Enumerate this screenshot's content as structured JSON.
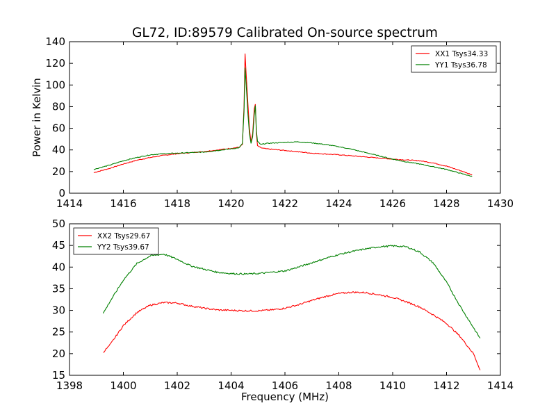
{
  "title": "GL72, ID:89579 Calibrated On-source spectrum",
  "colors": {
    "xx": "#ff0000",
    "yy": "#008000"
  },
  "chart_data": [
    {
      "type": "line",
      "ylabel": "Power in Kelvin",
      "xlabel": "",
      "xlim": [
        1414,
        1430
      ],
      "ylim": [
        0,
        140
      ],
      "xticks": [
        1414,
        1416,
        1418,
        1420,
        1422,
        1424,
        1426,
        1428,
        1430
      ],
      "yticks": [
        0,
        20,
        40,
        60,
        80,
        100,
        120,
        140
      ],
      "legend": "top-right",
      "grid": false,
      "series": [
        {
          "name": "XX1 Tsys34.33",
          "color": "#ff0000",
          "points": [
            [
              1414.9,
              19
            ],
            [
              1415.5,
              23
            ],
            [
              1416,
              27
            ],
            [
              1416.5,
              30.5
            ],
            [
              1417,
              33
            ],
            [
              1417.5,
              35
            ],
            [
              1418,
              36.5
            ],
            [
              1418.5,
              37.5
            ],
            [
              1419,
              38.5
            ],
            [
              1419.5,
              40
            ],
            [
              1420,
              41.5
            ],
            [
              1420.3,
              42.5
            ],
            [
              1420.42,
              45
            ],
            [
              1420.48,
              80
            ],
            [
              1420.52,
              129
            ],
            [
              1420.56,
              110
            ],
            [
              1420.62,
              85
            ],
            [
              1420.68,
              60
            ],
            [
              1420.74,
              47
            ],
            [
              1420.8,
              55
            ],
            [
              1420.86,
              78
            ],
            [
              1420.9,
              82
            ],
            [
              1420.94,
              55
            ],
            [
              1420.98,
              44
            ],
            [
              1421.1,
              42
            ],
            [
              1421.3,
              41
            ],
            [
              1422,
              39.5
            ],
            [
              1423,
              37
            ],
            [
              1424,
              35.5
            ],
            [
              1425,
              33.5
            ],
            [
              1426,
              31.5
            ],
            [
              1427,
              30
            ],
            [
              1427.5,
              28
            ],
            [
              1428,
              25
            ],
            [
              1428.5,
              21
            ],
            [
              1428.95,
              17
            ]
          ]
        },
        {
          "name": "YY1 Tsys36.78",
          "color": "#008000",
          "points": [
            [
              1414.9,
              22
            ],
            [
              1415.5,
              26
            ],
            [
              1416,
              30
            ],
            [
              1416.5,
              33
            ],
            [
              1417,
              35.5
            ],
            [
              1417.5,
              36.5
            ],
            [
              1418,
              37
            ],
            [
              1418.5,
              37.5
            ],
            [
              1419,
              38
            ],
            [
              1419.5,
              39.5
            ],
            [
              1420,
              41
            ],
            [
              1420.3,
              42
            ],
            [
              1420.42,
              46
            ],
            [
              1420.48,
              75
            ],
            [
              1420.52,
              116
            ],
            [
              1420.56,
              100
            ],
            [
              1420.62,
              75
            ],
            [
              1420.68,
              55
            ],
            [
              1420.74,
              46
            ],
            [
              1420.8,
              52
            ],
            [
              1420.86,
              72
            ],
            [
              1420.9,
              81
            ],
            [
              1420.94,
              58
            ],
            [
              1420.98,
              48
            ],
            [
              1421.1,
              45
            ],
            [
              1421.3,
              46
            ],
            [
              1422,
              47
            ],
            [
              1422.5,
              47.5
            ],
            [
              1423,
              46.5
            ],
            [
              1423.5,
              45
            ],
            [
              1424,
              43
            ],
            [
              1424.5,
              40.5
            ],
            [
              1425,
              37.5
            ],
            [
              1425.5,
              34.5
            ],
            [
              1426,
              31.5
            ],
            [
              1426.5,
              29
            ],
            [
              1427,
              27
            ],
            [
              1427.5,
              24.5
            ],
            [
              1428,
              22
            ],
            [
              1428.5,
              18.5
            ],
            [
              1428.95,
              15.5
            ]
          ]
        }
      ]
    },
    {
      "type": "line",
      "ylabel": "",
      "xlabel": "Frequency (MHz)",
      "xlim": [
        1398,
        1414
      ],
      "ylim": [
        15,
        50
      ],
      "xticks": [
        1398,
        1400,
        1402,
        1404,
        1406,
        1408,
        1410,
        1412,
        1414
      ],
      "yticks": [
        15,
        20,
        25,
        30,
        35,
        40,
        45,
        50
      ],
      "legend": "top-left",
      "grid": false,
      "series": [
        {
          "name": "XX2 Tsys29.67",
          "color": "#ff0000",
          "points": [
            [
              1399.25,
              20.3
            ],
            [
              1399.5,
              22
            ],
            [
              1400,
              26.5
            ],
            [
              1400.5,
              29.5
            ],
            [
              1401,
              31.2
            ],
            [
              1401.5,
              31.8
            ],
            [
              1402,
              31.7
            ],
            [
              1402.5,
              31
            ],
            [
              1403,
              30.5
            ],
            [
              1403.5,
              30.1
            ],
            [
              1404,
              30
            ],
            [
              1404.5,
              29.9
            ],
            [
              1405,
              29.9
            ],
            [
              1405.5,
              30.1
            ],
            [
              1406,
              30.5
            ],
            [
              1406.5,
              31.3
            ],
            [
              1407,
              32.3
            ],
            [
              1407.5,
              33.2
            ],
            [
              1408,
              33.9
            ],
            [
              1408.5,
              34.2
            ],
            [
              1409,
              34.1
            ],
            [
              1409.5,
              33.6
            ],
            [
              1410,
              33
            ],
            [
              1410.5,
              32
            ],
            [
              1411,
              30.8
            ],
            [
              1411.5,
              29
            ],
            [
              1412,
              27
            ],
            [
              1412.5,
              24
            ],
            [
              1413,
              20
            ],
            [
              1413.25,
              16.2
            ]
          ]
        },
        {
          "name": "YY2 Tsys39.67",
          "color": "#008000",
          "points": [
            [
              1399.25,
              29.3
            ],
            [
              1399.5,
              32
            ],
            [
              1400,
              37
            ],
            [
              1400.5,
              40.8
            ],
            [
              1401,
              42.6
            ],
            [
              1401.5,
              43
            ],
            [
              1402,
              41.8
            ],
            [
              1402.5,
              40.3
            ],
            [
              1403,
              39.5
            ],
            [
              1403.5,
              38.8
            ],
            [
              1404,
              38.5
            ],
            [
              1404.5,
              38.4
            ],
            [
              1405,
              38.5
            ],
            [
              1405.5,
              38.8
            ],
            [
              1406,
              39.1
            ],
            [
              1406.5,
              40
            ],
            [
              1407,
              41
            ],
            [
              1407.5,
              42
            ],
            [
              1408,
              42.9
            ],
            [
              1408.5,
              43.6
            ],
            [
              1409,
              44.2
            ],
            [
              1409.5,
              44.7
            ],
            [
              1410,
              44.9
            ],
            [
              1410.5,
              44.7
            ],
            [
              1411,
              43.5
            ],
            [
              1411.5,
              41
            ],
            [
              1412,
              36.5
            ],
            [
              1412.5,
              31
            ],
            [
              1413,
              26
            ],
            [
              1413.25,
              23.5
            ]
          ]
        }
      ]
    }
  ]
}
